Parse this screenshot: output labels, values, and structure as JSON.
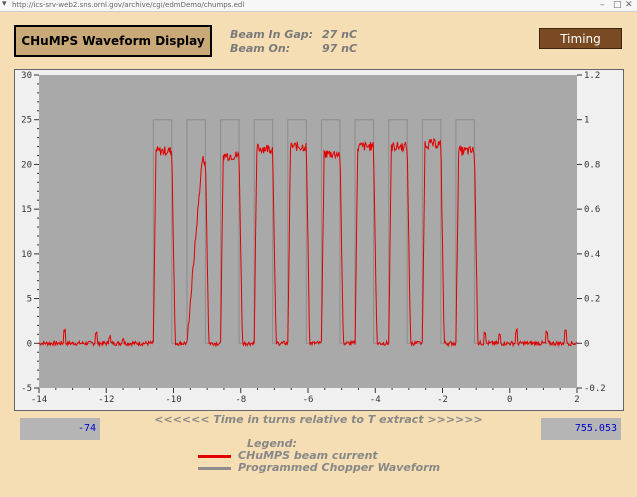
{
  "browser": {
    "url": "http://ics-srv-web2.sns.ornl.gov/archive/cgi/edmDemo/chumps.edl"
  },
  "header": {
    "title": "CHuMPS Waveform Display",
    "beam_in_gap_label": "Beam In Gap:",
    "beam_in_gap_value": "27 nC",
    "beam_on_label": "Beam On:",
    "beam_on_value": "97 nC",
    "timing_button": "Timing"
  },
  "readouts": {
    "left": "-74",
    "right": "755.053"
  },
  "legend": {
    "title": "Legend:",
    "items": [
      {
        "label": "CHuMPS beam current",
        "color": "#e00000"
      },
      {
        "label": "Programmed Chopper Waveform",
        "color": "#8c8c8c"
      }
    ]
  },
  "colors": {
    "background": "#f5deb3",
    "plot_area": "#a9a9a9",
    "beam_current": "#e00000",
    "chopper": "#8c8c8c",
    "timing_button": "#7a4b22",
    "readout_text": "#0000c8"
  },
  "chart_data": {
    "type": "line",
    "xlabel": "<<<<<< Time in turns relative to T extract >>>>>>",
    "xlim": [
      -14,
      2
    ],
    "ylim_left": [
      -5,
      30
    ],
    "ylim_right": [
      -0.2,
      1.2
    ],
    "x_ticks": [
      "-14",
      "-12",
      "-10",
      "-8",
      "-6",
      "-4",
      "-2",
      "0",
      "2"
    ],
    "y_left_ticks": [
      "30",
      "25",
      "20",
      "15",
      "10",
      "5",
      "0",
      "-5"
    ],
    "y_right_ticks": [
      "1.2",
      "1",
      "0.8",
      "0.6",
      "0.4",
      "0.2",
      "0",
      "-0.2"
    ],
    "grid": false,
    "series": [
      {
        "name": "Programmed Chopper Waveform",
        "axis": "right",
        "pulses": [
          [
            -10.6,
            -10.05
          ],
          [
            -9.6,
            -9.05
          ],
          [
            -8.6,
            -8.05
          ],
          [
            -7.6,
            -7.05
          ],
          [
            -6.6,
            -6.05
          ],
          [
            -5.6,
            -5.05
          ],
          [
            -4.6,
            -4.05
          ],
          [
            -3.6,
            -3.05
          ],
          [
            -2.6,
            -2.05
          ],
          [
            -1.6,
            -1.05
          ]
        ],
        "high": 1.0,
        "low": 0.0
      },
      {
        "name": "CHuMPS beam current",
        "axis": "left",
        "pulse_peaks": [
          21.5,
          20.5,
          21.0,
          21.8,
          22.0,
          21.2,
          22.0,
          22.0,
          22.3,
          21.5
        ],
        "baseline": 0.0
      }
    ]
  }
}
